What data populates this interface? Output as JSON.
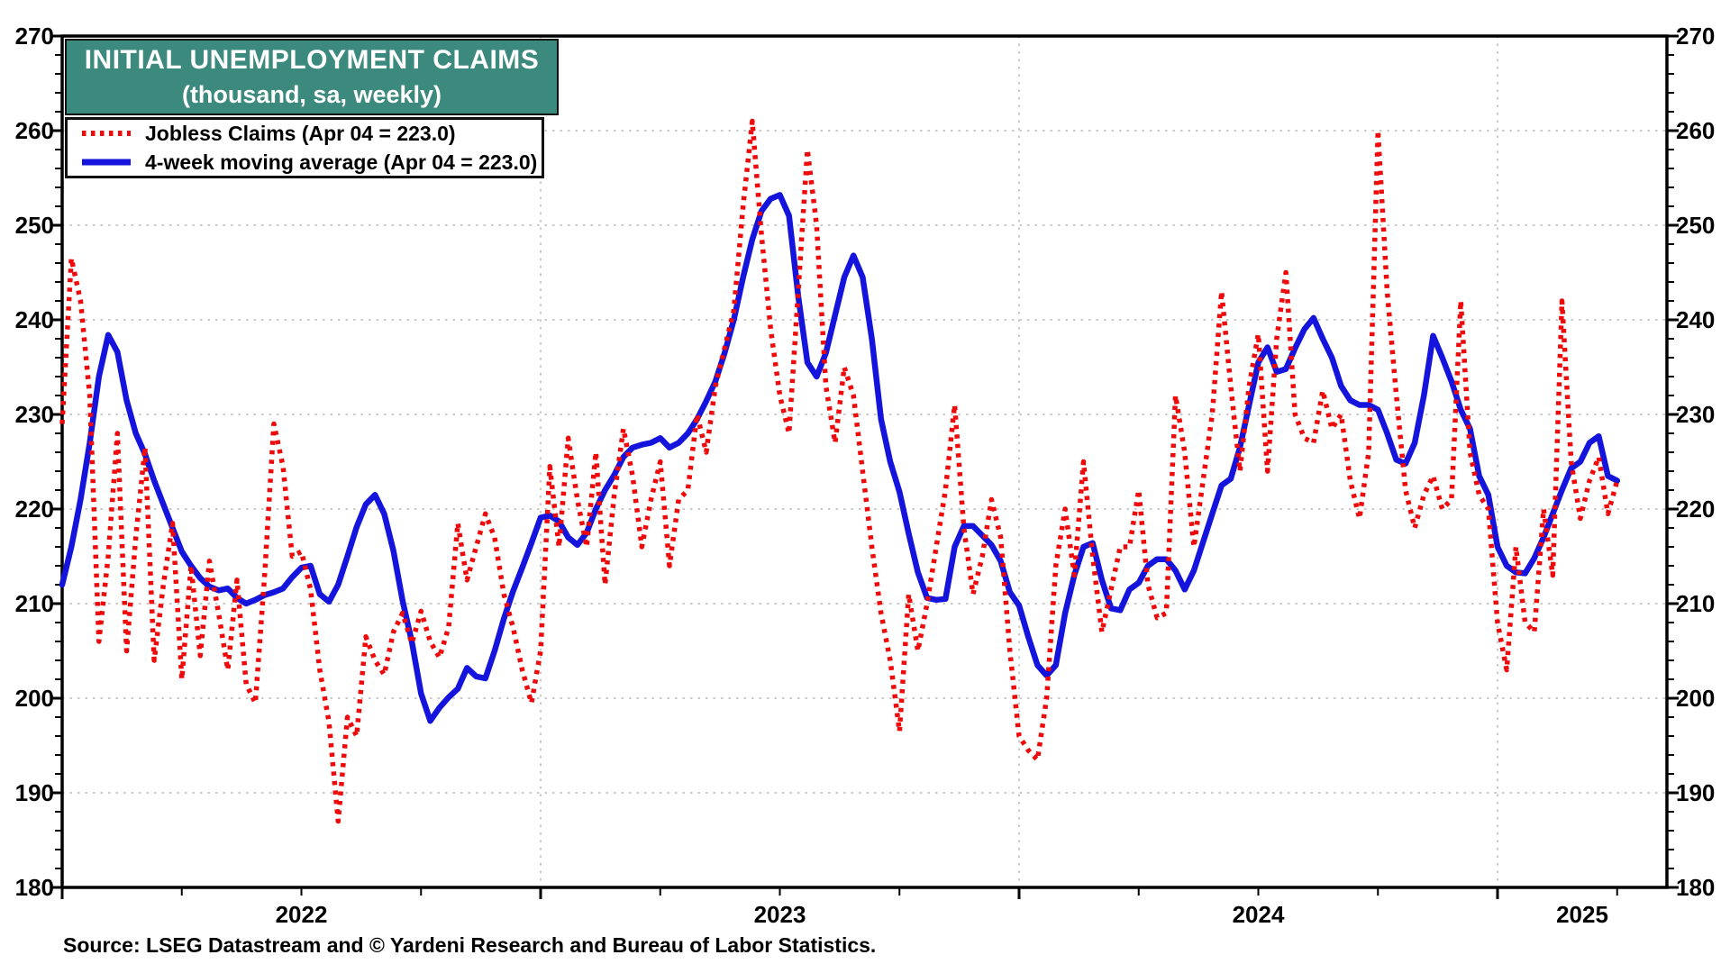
{
  "title": {
    "line1": "INITIAL UNEMPLOYMENT CLAIMS",
    "line2": "(thousand, sa, weekly)"
  },
  "legend": {
    "items": [
      {
        "label": "Jobless Claims (Apr 04 = 223.0)",
        "color": "#EE0A0A",
        "style": "dotted"
      },
      {
        "label": "4-week moving average (Apr 04 = 223.0)",
        "color": "#1414DD",
        "style": "solid"
      }
    ]
  },
  "source": "Source: LSEG Datastream and © Yardeni Research and Bureau of Labor Statistics.",
  "chart_data": {
    "type": "line",
    "unit": "thousand, seasonally adjusted, weekly",
    "start_week": "2022-01-07",
    "frequency": "weekly",
    "ylim": [
      180,
      270
    ],
    "yticks": [
      180,
      190,
      200,
      210,
      220,
      230,
      240,
      250,
      260,
      270
    ],
    "minor_tick_step": 2,
    "grid": "dotted horizontal at major yticks, dotted vertical at year starts",
    "legend_position": "top-left",
    "x_year_labels": [
      "2022",
      "2023",
      "2024",
      "2025"
    ],
    "last_point_label": "Apr 04 = 223.0",
    "series": [
      {
        "name": "Jobless Claims",
        "color": "#EE0A0A",
        "style": "dotted",
        "values": [
          229,
          246.5,
          242,
          232,
          206,
          215,
          228,
          205,
          217,
          226.5,
          204,
          212,
          218.5,
          202,
          214,
          204.5,
          214.5,
          209,
          203,
          212.5,
          201.5,
          199.5,
          213,
          229,
          224.5,
          215,
          215.5,
          211.5,
          203,
          197.5,
          187,
          198,
          196,
          206.5,
          204,
          202.5,
          207,
          209,
          205.8,
          209.2,
          206,
          204.3,
          207.5,
          218.5,
          212.5,
          216,
          219.5,
          217,
          211,
          207.5,
          203,
          199.5,
          205,
          224.5,
          216,
          227.5,
          221,
          216,
          226,
          212,
          221.5,
          228.5,
          223.5,
          216,
          221,
          225,
          214,
          221,
          222,
          230,
          226,
          233,
          237,
          241,
          252,
          261,
          249,
          239,
          232,
          228,
          243,
          258,
          250,
          233,
          227,
          235,
          232,
          224,
          216,
          209,
          204,
          196.5,
          211,
          205,
          210,
          216,
          222,
          231,
          218,
          211,
          215,
          221,
          217,
          205,
          196,
          194.5,
          193.5,
          200,
          214,
          220,
          213,
          225,
          215,
          207,
          211.5,
          216,
          216,
          222,
          212,
          208.5,
          209,
          232,
          226,
          216,
          223,
          230,
          243,
          233,
          224,
          233,
          238.5,
          224,
          238,
          245,
          230,
          227.5,
          227,
          232.5,
          228.5,
          230,
          223,
          219,
          226,
          260,
          243,
          232,
          222,
          218,
          221.5,
          223.5,
          220,
          221,
          242,
          226,
          221.5,
          220,
          208,
          203,
          216,
          208,
          207,
          220,
          213,
          242,
          225,
          219,
          223,
          225.5,
          219.5,
          223
        ]
      },
      {
        "name": "4-week moving average",
        "color": "#1414DD",
        "style": "solid",
        "values": [
          212,
          216,
          221,
          227,
          234,
          238.4,
          236.6,
          231.5,
          228,
          225.8,
          223,
          220.5,
          218,
          215.5,
          214,
          212.7,
          211.8,
          211.4,
          211.6,
          210.6,
          210,
          210.4,
          210.9,
          211.2,
          211.6,
          212.8,
          213.8,
          214,
          211,
          210.2,
          212,
          215,
          218.1,
          220.5,
          221.5,
          219.5,
          215.6,
          210.3,
          206,
          200.5,
          197.6,
          199,
          200.1,
          201,
          203.2,
          202.3,
          202.1,
          205,
          208.4,
          211.3,
          213.8,
          216.4,
          219.1,
          219.3,
          218.7,
          217,
          216.2,
          217.5,
          220,
          222,
          223.6,
          225.5,
          226.5,
          226.8,
          227,
          227.5,
          226.5,
          227,
          228,
          229.5,
          231.4,
          233.5,
          236.5,
          240,
          244.5,
          248.5,
          251.5,
          252.8,
          253.2,
          251,
          242.5,
          235.5,
          234,
          236.5,
          240.5,
          244.5,
          246.8,
          244.5,
          238,
          229.5,
          225,
          221.8,
          217.4,
          213.3,
          210.6,
          210.4,
          210.5,
          216,
          218.2,
          218.2,
          217.2,
          216.2,
          214.5,
          211.2,
          209.8,
          206.5,
          203.5,
          202.4,
          203.5,
          209,
          213,
          216,
          216.4,
          212.5,
          209.5,
          209.3,
          211.5,
          212.2,
          214,
          214.7,
          214.7,
          213.5,
          211.5,
          213.5,
          216.5,
          219.5,
          222.5,
          223.2,
          226.5,
          231,
          235.5,
          237.1,
          234.5,
          234.8,
          237,
          239,
          240.2,
          238,
          236,
          233,
          231.5,
          231,
          231,
          230.5,
          228,
          225.2,
          224.8,
          227,
          232,
          238.3,
          236,
          233.5,
          230.5,
          228.5,
          223.5,
          221.5,
          216,
          214,
          213.3,
          213.2,
          214.8,
          217,
          219.5,
          222,
          224.3,
          225,
          227,
          227.7,
          223.5,
          223
        ]
      }
    ]
  }
}
